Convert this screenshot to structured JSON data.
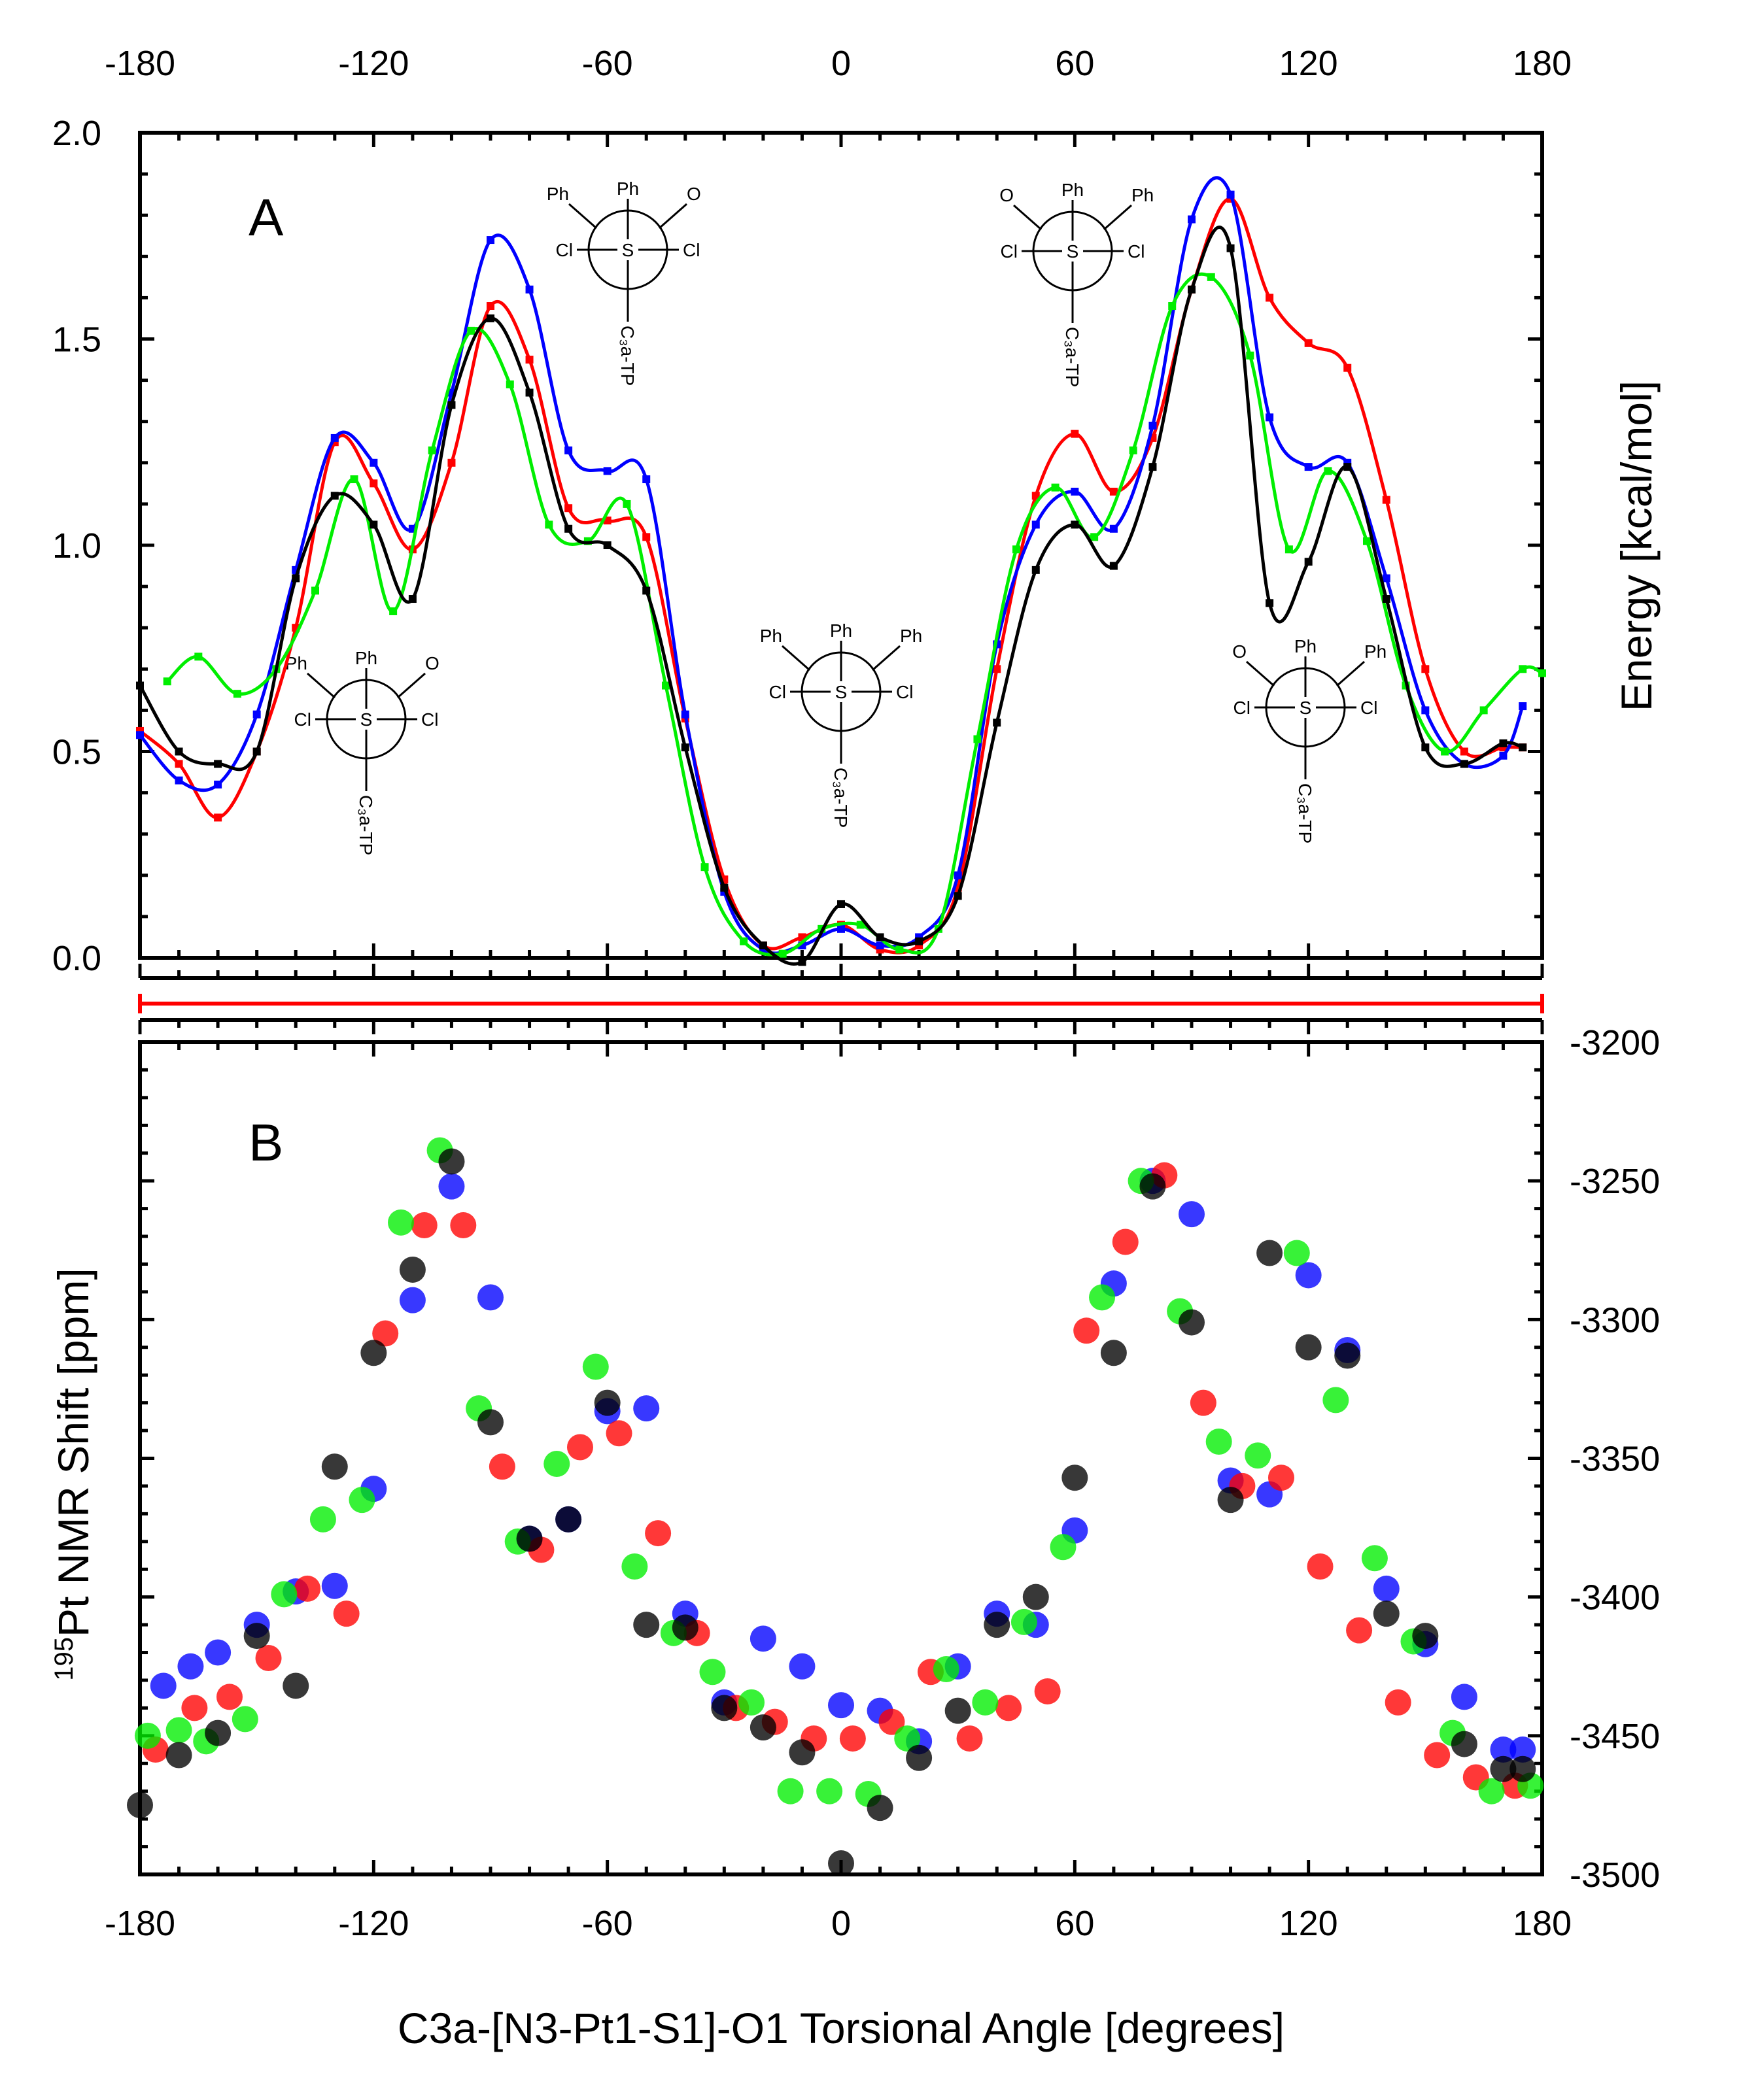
{
  "chart_data": [
    {
      "panel": "A",
      "type": "line",
      "xlabel": "C3a-[N3-Pt1-S1]-O1 Torsional Angle [degrees]",
      "ylabel": "Energy [kcal/mol]",
      "xlim": [
        -180,
        180
      ],
      "ylim": [
        0,
        2.0
      ],
      "x_ticks": [
        "-180",
        "-120",
        "-60",
        "0",
        "60",
        "120",
        "180"
      ],
      "y_ticks": [
        "0.0",
        "0.5",
        "1.0",
        "1.5",
        "2.0"
      ],
      "series": [
        {
          "name": "red",
          "color": "#ff0000",
          "x": [
            -180,
            -170,
            -160,
            -150,
            -140,
            -130,
            -120,
            -110,
            -100,
            -90,
            -80,
            -70,
            -60,
            -50,
            -40,
            -30,
            -20,
            -10,
            0,
            10,
            20,
            30,
            40,
            50,
            60,
            70,
            80,
            90,
            100,
            110,
            120,
            130,
            140,
            150,
            160,
            170,
            175
          ],
          "y": [
            0.55,
            0.47,
            0.34,
            0.5,
            0.8,
            1.25,
            1.15,
            0.99,
            1.2,
            1.58,
            1.45,
            1.09,
            1.06,
            1.02,
            0.58,
            0.19,
            0.03,
            0.05,
            0.08,
            0.02,
            0.03,
            0.17,
            0.7,
            1.12,
            1.27,
            1.13,
            1.26,
            1.62,
            1.84,
            1.6,
            1.49,
            1.43,
            1.11,
            0.7,
            0.5,
            0.51,
            0.51
          ]
        },
        {
          "name": "blue",
          "color": "#0000ff",
          "x": [
            -180,
            -170,
            -160,
            -150,
            -140,
            -130,
            -120,
            -110,
            -100,
            -90,
            -80,
            -70,
            -60,
            -50,
            -40,
            -30,
            -20,
            -10,
            0,
            10,
            20,
            30,
            40,
            50,
            60,
            70,
            80,
            90,
            100,
            110,
            120,
            130,
            140,
            150,
            160,
            170,
            175
          ],
          "y": [
            0.54,
            0.43,
            0.42,
            0.59,
            0.94,
            1.26,
            1.2,
            1.04,
            1.37,
            1.74,
            1.62,
            1.23,
            1.18,
            1.16,
            0.59,
            0.16,
            0.02,
            0.03,
            0.07,
            0.03,
            0.05,
            0.2,
            0.76,
            1.05,
            1.13,
            1.04,
            1.29,
            1.79,
            1.85,
            1.31,
            1.19,
            1.2,
            0.92,
            0.6,
            0.47,
            0.49,
            0.61
          ]
        },
        {
          "name": "green",
          "color": "#00ee00",
          "x": [
            -173,
            -165,
            -155,
            -145,
            -135,
            -125,
            -115,
            -105,
            -95,
            -85,
            -75,
            -65,
            -55,
            -45,
            -35,
            -25,
            -15,
            -5,
            5,
            15,
            25,
            35,
            45,
            55,
            65,
            75,
            85,
            95,
            105,
            115,
            125,
            135,
            145,
            155,
            165,
            175,
            180
          ],
          "y": [
            0.67,
            0.73,
            0.64,
            0.7,
            0.89,
            1.16,
            0.84,
            1.23,
            1.52,
            1.39,
            1.05,
            1.01,
            1.1,
            0.66,
            0.22,
            0.04,
            0.01,
            0.07,
            0.08,
            0.02,
            0.07,
            0.53,
            0.99,
            1.14,
            1.02,
            1.23,
            1.58,
            1.65,
            1.46,
            0.99,
            1.18,
            1.01,
            0.66,
            0.5,
            0.6,
            0.7,
            0.69
          ]
        },
        {
          "name": "black",
          "color": "#000000",
          "x": [
            -180,
            -170,
            -160,
            -150,
            -140,
            -130,
            -120,
            -110,
            -100,
            -90,
            -80,
            -70,
            -60,
            -50,
            -40,
            -30,
            -20,
            -10,
            0,
            10,
            20,
            30,
            40,
            50,
            60,
            70,
            80,
            90,
            100,
            110,
            120,
            130,
            140,
            150,
            160,
            170,
            175
          ],
          "y": [
            0.66,
            0.5,
            0.47,
            0.5,
            0.92,
            1.12,
            1.05,
            0.87,
            1.34,
            1.55,
            1.37,
            1.04,
            1.0,
            0.89,
            0.51,
            0.17,
            0.03,
            -0.01,
            0.13,
            0.05,
            0.04,
            0.15,
            0.57,
            0.94,
            1.05,
            0.95,
            1.19,
            1.62,
            1.72,
            0.86,
            0.96,
            1.19,
            0.87,
            0.51,
            0.47,
            0.52,
            0.51
          ]
        }
      ],
      "annotations": [
        {
          "text": "A"
        },
        {
          "front_top": "Ph",
          "front_bottom": "C₃a-TP",
          "left": "Cl",
          "right": "Cl",
          "back_left": "Ph",
          "back_right": "O",
          "center": "S"
        },
        {
          "front_top": "Ph",
          "front_bottom": "C₃a-TP",
          "left": "Cl",
          "right": "Cl",
          "back_left": "Ph",
          "back_right": "O",
          "center": "S"
        },
        {
          "front_top": "Ph",
          "front_bottom": "C₃a-TP",
          "left": "Cl",
          "right": "Cl",
          "back_left": "Ph",
          "back_right": "Ph",
          "center": "S"
        },
        {
          "front_top": "Ph",
          "front_bottom": "C₃a-TP",
          "left": "Cl",
          "right": "Cl",
          "back_left": "O",
          "back_right": "Ph",
          "center": "S"
        },
        {
          "front_top": "Ph",
          "front_bottom": "C₃a-TP",
          "left": "Cl",
          "right": "Cl",
          "back_left": "O",
          "back_right": "Ph",
          "center": "S"
        }
      ]
    },
    {
      "panel": "B",
      "type": "scatter",
      "xlabel": "C3a-[N3-Pt1-S1]-O1 Torsional Angle [degrees]",
      "ylabel": "195Pt NMR Shift [ppm]",
      "ylabel_sup": "195",
      "ylabel_main": "Pt NMR Shift [ppm]",
      "xlim": [
        -180,
        180
      ],
      "ylim": [
        -3500,
        -3200
      ],
      "x_ticks": [
        "-180",
        "-120",
        "-60",
        "0",
        "60",
        "120",
        "180"
      ],
      "y_ticks": [
        "-3200",
        "-3250",
        "-3300",
        "-3350",
        "-3400",
        "-3450",
        "-3500"
      ],
      "series": [
        {
          "name": "blue",
          "color": "#0000ff",
          "x": [
            -174,
            -167,
            -160,
            -150,
            -140,
            -130,
            -120,
            -110,
            -100,
            -90,
            -80,
            -70,
            -60,
            -50,
            -40,
            -30,
            -20,
            -10,
            0,
            10,
            20,
            30,
            40,
            50,
            60,
            70,
            80,
            90,
            100,
            110,
            120,
            130,
            140,
            150,
            160,
            170,
            175
          ],
          "y": [
            -3432,
            -3425,
            -3420,
            -3410,
            -3398,
            -3396,
            -3361,
            -3293,
            -3252,
            -3292,
            -3379,
            -3372,
            -3333,
            -3332,
            -3406,
            -3438,
            -3415,
            -3425,
            -3439,
            -3441,
            -3452,
            -3425,
            -3406,
            -3410,
            -3376,
            -3287,
            -3250,
            -3262,
            -3358,
            -3363,
            -3284,
            -3311,
            -3397,
            -3417,
            -3436,
            -3455,
            -3455
          ]
        },
        {
          "name": "red",
          "color": "#ff0000",
          "x": [
            -176,
            -166,
            -157,
            -147,
            -137,
            -127,
            -117,
            -107,
            -97,
            -87,
            -77,
            -67,
            -57,
            -47,
            -37,
            -27,
            -17,
            -7,
            3,
            13,
            23,
            33,
            43,
            53,
            63,
            73,
            83,
            93,
            103,
            113,
            123,
            133,
            143,
            153,
            163,
            173
          ],
          "y": [
            -3455,
            -3440,
            -3436,
            -3422,
            -3397,
            -3406,
            -3305,
            -3266,
            -3266,
            -3353,
            -3383,
            -3346,
            -3341,
            -3377,
            -3413,
            -3440,
            -3445,
            -3451,
            -3451,
            -3445,
            -3427,
            -3451,
            -3440,
            -3434,
            -3304,
            -3272,
            -3248,
            -3330,
            -3360,
            -3357,
            -3389,
            -3412,
            -3438,
            -3457,
            -3465,
            -3468
          ]
        },
        {
          "name": "green",
          "color": "#00ee00",
          "x": [
            -178,
            -170,
            -163,
            -153,
            -143,
            -133,
            -123,
            -113,
            -103,
            -93,
            -83,
            -73,
            -63,
            -53,
            -43,
            -33,
            -23,
            -13,
            -3,
            7,
            17,
            27,
            37,
            47,
            57,
            67,
            77,
            87,
            97,
            107,
            117,
            127,
            137,
            147,
            157,
            167,
            177
          ],
          "y": [
            -3450,
            -3448,
            -3452,
            -3444,
            -3399,
            -3372,
            -3365,
            -3265,
            -3239,
            -3332,
            -3380,
            -3352,
            -3317,
            -3389,
            -3413,
            -3427,
            -3438,
            -3470,
            -3470,
            -3471,
            -3451,
            -3426,
            -3438,
            -3409,
            -3382,
            -3292,
            -3250,
            -3297,
            -3344,
            -3349,
            -3276,
            -3329,
            -3386,
            -3416,
            -3449,
            -3470,
            -3468
          ]
        },
        {
          "name": "black",
          "color": "#000000",
          "x": [
            -180,
            -170,
            -160,
            -150,
            -140,
            -130,
            -120,
            -110,
            -100,
            -90,
            -80,
            -70,
            -60,
            -50,
            -40,
            -30,
            -20,
            -10,
            0,
            10,
            20,
            30,
            40,
            50,
            60,
            70,
            80,
            90,
            100,
            110,
            120,
            130,
            140,
            150,
            160,
            170,
            175
          ],
          "y": [
            -3475,
            -3457,
            -3449,
            -3414,
            -3432,
            -3353,
            -3312,
            -3282,
            -3243,
            -3337,
            -3379,
            -3372,
            -3330,
            -3410,
            -3411,
            -3440,
            -3447,
            -3456,
            -3496,
            -3476,
            -3458,
            -3441,
            -3410,
            -3400,
            -3357,
            -3312,
            -3252,
            -3301,
            -3365,
            -3276,
            -3310,
            -3313,
            -3406,
            -3414,
            -3453,
            -3462,
            -3462
          ]
        }
      ],
      "annotations": [
        {
          "text": "B"
        }
      ]
    }
  ]
}
